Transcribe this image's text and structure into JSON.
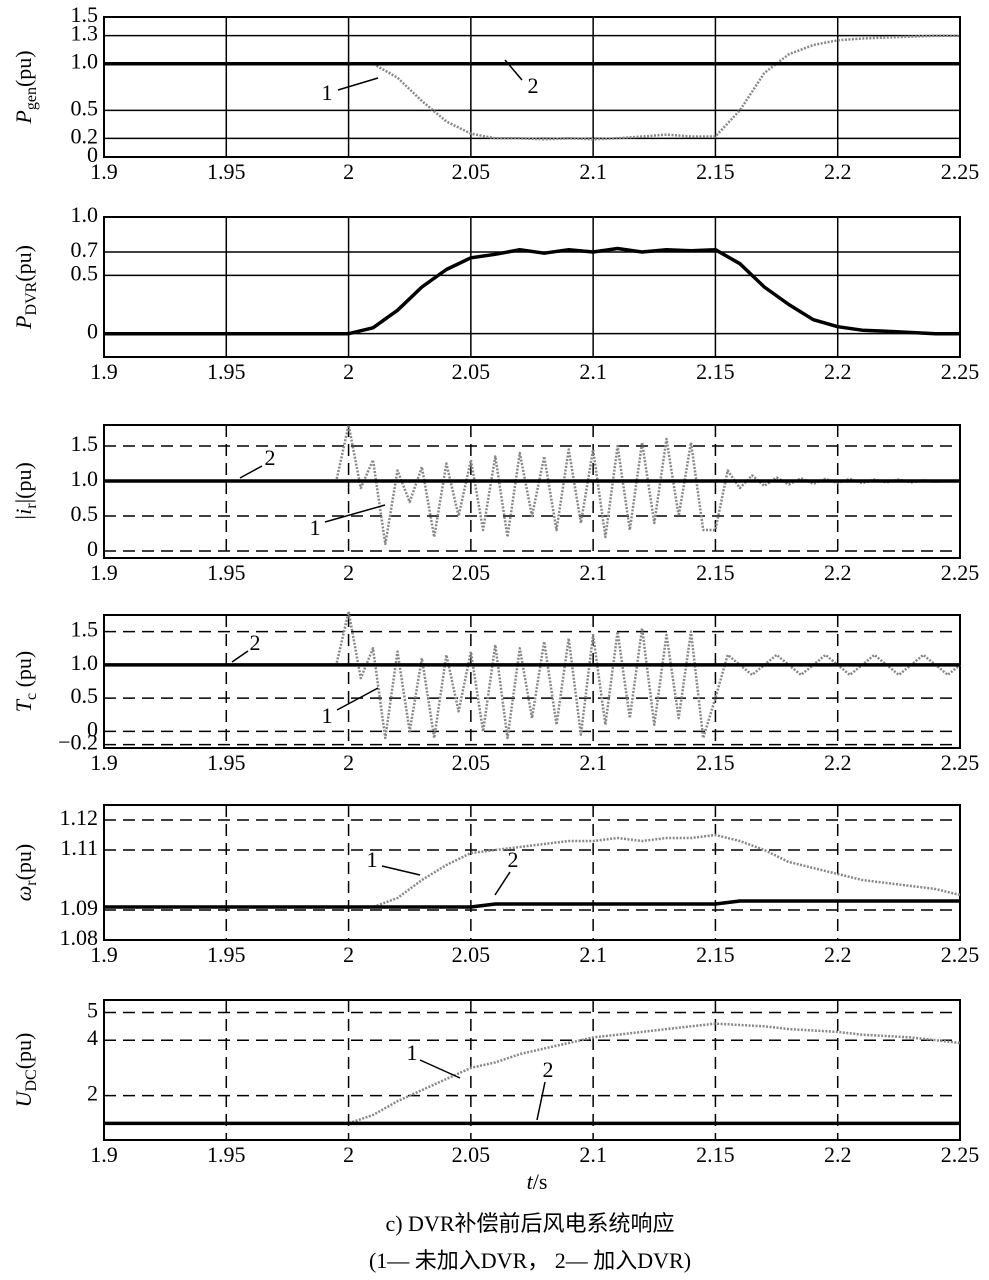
{
  "chart_data": [
    {
      "type": "line",
      "grid": "solid",
      "ylabel": {
        "main": "P",
        "sub": "gen",
        "unit": "(pu)"
      },
      "x": [
        1.9,
        1.91,
        1.92,
        1.93,
        1.94,
        1.95,
        1.96,
        1.97,
        1.98,
        1.99,
        2,
        2.01,
        2.02,
        2.03,
        2.04,
        2.05,
        2.06,
        2.07,
        2.08,
        2.09,
        2.1,
        2.11,
        2.12,
        2.13,
        2.14,
        2.15,
        2.16,
        2.17,
        2.18,
        2.19,
        2.2,
        2.21,
        2.22,
        2.23,
        2.24,
        2.25
      ],
      "xlim": [
        1.9,
        2.25
      ],
      "xticks": [
        1.9,
        1.95,
        2,
        2.05,
        2.1,
        2.15,
        2.2,
        2.25
      ],
      "ylim": [
        0,
        1.5
      ],
      "yticks": [
        0,
        0.2,
        0.5,
        {
          "value": 1,
          "label": "1.0"
        },
        1.3,
        1.5
      ],
      "series": [
        {
          "label": "1",
          "color": "#888888",
          "style": "dotted",
          "values": [
            1,
            1,
            1,
            1,
            1,
            1,
            1,
            1,
            1,
            1,
            1,
            1,
            0.85,
            0.6,
            0.38,
            0.25,
            0.2,
            0.2,
            0.19,
            0.2,
            0.19,
            0.2,
            0.22,
            0.24,
            0.22,
            0.22,
            0.5,
            0.9,
            1.1,
            1.2,
            1.25,
            1.27,
            1.28,
            1.29,
            1.3,
            1.3
          ]
        },
        {
          "label": "2",
          "color": "#000000",
          "style": "solid",
          "values": [
            1,
            1,
            1,
            1,
            1,
            1,
            1,
            1,
            1,
            1,
            1,
            1,
            1,
            1,
            1,
            1,
            1,
            1,
            1,
            1,
            1,
            1,
            1,
            1,
            1,
            1,
            1,
            1,
            1,
            1,
            1,
            1,
            1,
            1,
            1,
            1
          ]
        }
      ]
    },
    {
      "type": "line",
      "grid": "solid",
      "ylabel": {
        "main": "P",
        "sub": "DVR",
        "unit": "(pu)"
      },
      "x": [
        1.9,
        1.91,
        1.92,
        1.93,
        1.94,
        1.95,
        1.96,
        1.97,
        1.98,
        1.99,
        2,
        2.01,
        2.02,
        2.03,
        2.04,
        2.05,
        2.06,
        2.07,
        2.08,
        2.09,
        2.1,
        2.11,
        2.12,
        2.13,
        2.14,
        2.15,
        2.16,
        2.17,
        2.18,
        2.19,
        2.2,
        2.21,
        2.22,
        2.23,
        2.24,
        2.25
      ],
      "xlim": [
        1.9,
        2.25
      ],
      "xticks": [
        1.9,
        1.95,
        2,
        2.05,
        2.1,
        2.15,
        2.2,
        2.25
      ],
      "ylim": [
        -0.2,
        1.0
      ],
      "yticks": [
        0,
        0.5,
        0.7,
        {
          "value": 1,
          "label": "1.0"
        }
      ],
      "series": [
        {
          "color": "#000000",
          "style": "solid",
          "values": [
            0,
            0,
            0,
            0,
            0,
            0,
            0,
            0,
            0,
            0,
            0,
            0.05,
            0.2,
            0.4,
            0.55,
            0.65,
            0.68,
            0.72,
            0.69,
            0.72,
            0.7,
            0.73,
            0.7,
            0.72,
            0.71,
            0.72,
            0.6,
            0.4,
            0.25,
            0.12,
            0.06,
            0.03,
            0.02,
            0.01,
            0,
            0
          ]
        }
      ]
    },
    {
      "type": "line",
      "grid": "dashed",
      "ylabel": {
        "main": "|i",
        "sub": "r",
        "unit": "|(pu)"
      },
      "x": [
        1.9,
        1.905,
        1.91,
        1.915,
        1.92,
        1.925,
        1.93,
        1.935,
        1.94,
        1.945,
        1.95,
        1.955,
        1.96,
        1.965,
        1.97,
        1.975,
        1.98,
        1.985,
        1.99,
        1.995,
        2,
        2.005,
        2.01,
        2.015,
        2.02,
        2.025,
        2.03,
        2.035,
        2.04,
        2.045,
        2.05,
        2.055,
        2.06,
        2.065,
        2.07,
        2.075,
        2.08,
        2.085,
        2.09,
        2.095,
        2.1,
        2.105,
        2.11,
        2.115,
        2.12,
        2.125,
        2.13,
        2.135,
        2.14,
        2.145,
        2.15,
        2.155,
        2.16,
        2.165,
        2.17,
        2.175,
        2.18,
        2.185,
        2.19,
        2.195,
        2.2,
        2.205,
        2.21,
        2.215,
        2.22,
        2.225,
        2.23,
        2.235,
        2.24,
        2.245,
        2.25
      ],
      "xlim": [
        1.9,
        2.25
      ],
      "xticks": [
        1.9,
        1.95,
        2,
        2.05,
        2.1,
        2.15,
        2.2,
        2.25
      ],
      "ylim": [
        -0.1,
        1.8
      ],
      "yticks": [
        0,
        0.5,
        {
          "value": 1,
          "label": "1.0"
        },
        1.5
      ],
      "series": [
        {
          "label": "1",
          "color": "#888888",
          "style": "dotted",
          "values": [
            1,
            1,
            1,
            1,
            1,
            1,
            1,
            1,
            1,
            1,
            1,
            1,
            1,
            1,
            1,
            1,
            1,
            1,
            1,
            1,
            1.8,
            0.9,
            1.3,
            0.1,
            1.15,
            0.7,
            1.2,
            0.2,
            1.25,
            0.5,
            1.3,
            0.3,
            1.35,
            0.2,
            1.4,
            0.5,
            1.35,
            0.3,
            1.45,
            0.4,
            1.45,
            0.2,
            1.5,
            0.3,
            1.55,
            0.4,
            1.6,
            0.5,
            1.55,
            0.3,
            0.3,
            1.15,
            0.9,
            1.08,
            0.93,
            1.05,
            0.95,
            1.04,
            0.96,
            1.03,
            0.97,
            1.03,
            0.97,
            1.02,
            0.98,
            1.02,
            0.98,
            1.01,
            0.99,
            1,
            1
          ]
        },
        {
          "label": "2",
          "color": "#000000",
          "style": "solid",
          "values": [
            1,
            1,
            1,
            1,
            1,
            1,
            1,
            1,
            1,
            1,
            1,
            1,
            1,
            1,
            1,
            1,
            1,
            1,
            1,
            1,
            1,
            1,
            1,
            1,
            1,
            1,
            1,
            1,
            1,
            1,
            1,
            1,
            1,
            1,
            1,
            1,
            1,
            1,
            1,
            1,
            1,
            1,
            1,
            1,
            1,
            1,
            1,
            1,
            1,
            1,
            1,
            1,
            1,
            1,
            1,
            1,
            1,
            1,
            1,
            1,
            1,
            1,
            1,
            1,
            1,
            1,
            1,
            1,
            1,
            1,
            1
          ]
        }
      ]
    },
    {
      "type": "line",
      "grid": "dashed",
      "ylabel": {
        "main": "T",
        "sub": "c",
        "unit": " (pu)"
      },
      "x": [
        1.9,
        1.905,
        1.91,
        1.915,
        1.92,
        1.925,
        1.93,
        1.935,
        1.94,
        1.945,
        1.95,
        1.955,
        1.96,
        1.965,
        1.97,
        1.975,
        1.98,
        1.985,
        1.99,
        1.995,
        2,
        2.005,
        2.01,
        2.015,
        2.02,
        2.025,
        2.03,
        2.035,
        2.04,
        2.045,
        2.05,
        2.055,
        2.06,
        2.065,
        2.07,
        2.075,
        2.08,
        2.085,
        2.09,
        2.095,
        2.1,
        2.105,
        2.11,
        2.115,
        2.12,
        2.125,
        2.13,
        2.135,
        2.14,
        2.145,
        2.15,
        2.155,
        2.16,
        2.165,
        2.17,
        2.175,
        2.18,
        2.185,
        2.19,
        2.195,
        2.2,
        2.205,
        2.21,
        2.215,
        2.22,
        2.225,
        2.23,
        2.235,
        2.24,
        2.245,
        2.25
      ],
      "xlim": [
        1.9,
        2.25
      ],
      "xticks": [
        1.9,
        1.95,
        2,
        2.05,
        2.1,
        2.15,
        2.2,
        2.25
      ],
      "ylim": [
        -0.25,
        1.75
      ],
      "yticks": [
        {
          "value": -0.2,
          "label": "−0.2"
        },
        0,
        0.5,
        {
          "value": 1,
          "label": "1.0"
        },
        1.5
      ],
      "series": [
        {
          "label": "1",
          "color": "#888888",
          "style": "dotted",
          "values": [
            1,
            1,
            1,
            1,
            1,
            1,
            1,
            1,
            1,
            1,
            1,
            1,
            1,
            1,
            1,
            1,
            1,
            1,
            1,
            1,
            1.8,
            0.8,
            1.25,
            -0.1,
            1.2,
            0,
            1.1,
            -0.1,
            1.15,
            0.3,
            1.2,
            0,
            1.3,
            -0.1,
            1.25,
            0.2,
            1.35,
            0.1,
            1.4,
            -0.05,
            1.45,
            0.1,
            1.5,
            0.2,
            1.55,
            0.1,
            1.45,
            0.2,
            1.5,
            -0.1,
            0.5,
            1.15,
            1,
            0.85,
            1,
            1.15,
            1,
            0.85,
            1,
            1.15,
            1,
            0.85,
            1,
            1.15,
            1,
            0.85,
            1,
            1.15,
            1,
            0.85,
            1
          ]
        },
        {
          "label": "2",
          "color": "#000000",
          "style": "solid",
          "values": [
            1,
            1,
            1,
            1,
            1,
            1,
            1,
            1,
            1,
            1,
            1,
            1,
            1,
            1,
            1,
            1,
            1,
            1,
            1,
            1,
            1,
            1,
            1,
            1,
            1,
            1,
            1,
            1,
            1,
            1,
            1,
            1,
            1,
            1,
            1,
            1,
            1,
            1,
            1,
            1,
            1,
            1,
            1,
            1,
            1,
            1,
            1,
            1,
            1,
            1,
            1,
            1,
            1,
            1,
            1,
            1,
            1,
            1,
            1,
            1,
            1,
            1,
            1,
            1,
            1,
            1,
            1,
            1,
            1,
            1,
            1
          ]
        }
      ]
    },
    {
      "type": "line",
      "grid": "dashed",
      "ylabel": {
        "main": "ω",
        "sub": "r",
        "unit": "(pu)"
      },
      "x": [
        1.9,
        1.91,
        1.92,
        1.93,
        1.94,
        1.95,
        1.96,
        1.97,
        1.98,
        1.99,
        2,
        2.01,
        2.02,
        2.03,
        2.04,
        2.05,
        2.06,
        2.07,
        2.08,
        2.09,
        2.1,
        2.11,
        2.12,
        2.13,
        2.14,
        2.15,
        2.16,
        2.17,
        2.18,
        2.19,
        2.2,
        2.21,
        2.22,
        2.23,
        2.24,
        2.25
      ],
      "xlim": [
        1.9,
        2.25
      ],
      "xticks": [
        1.9,
        1.95,
        2,
        2.05,
        2.1,
        2.15,
        2.2,
        2.25
      ],
      "ylim": [
        1.08,
        1.125
      ],
      "yticks": [
        1.08,
        1.09,
        1.11,
        1.12
      ],
      "series": [
        {
          "label": "1",
          "color": "#888888",
          "style": "dotted",
          "values": [
            1.091,
            1.091,
            1.091,
            1.091,
            1.091,
            1.091,
            1.091,
            1.091,
            1.091,
            1.091,
            1.091,
            1.091,
            1.094,
            1.1,
            1.105,
            1.109,
            1.11,
            1.111,
            1.112,
            1.113,
            1.113,
            1.114,
            1.113,
            1.114,
            1.114,
            1.115,
            1.113,
            1.11,
            1.106,
            1.104,
            1.102,
            1.1,
            1.099,
            1.098,
            1.097,
            1.095
          ]
        },
        {
          "label": "2",
          "color": "#000000",
          "style": "solid",
          "values": [
            1.091,
            1.091,
            1.091,
            1.091,
            1.091,
            1.091,
            1.091,
            1.091,
            1.091,
            1.091,
            1.091,
            1.091,
            1.091,
            1.091,
            1.091,
            1.091,
            1.092,
            1.092,
            1.092,
            1.092,
            1.092,
            1.092,
            1.092,
            1.092,
            1.092,
            1.092,
            1.093,
            1.093,
            1.093,
            1.093,
            1.093,
            1.093,
            1.093,
            1.093,
            1.093,
            1.093
          ]
        }
      ]
    },
    {
      "type": "line",
      "grid": "dashed",
      "ylabel": {
        "main": "U",
        "sub": "DC",
        "unit": "(pu)"
      },
      "xlabel": {
        "main": "t",
        "unit": "/s"
      },
      "x": [
        1.9,
        1.91,
        1.92,
        1.93,
        1.94,
        1.95,
        1.96,
        1.97,
        1.98,
        1.99,
        2,
        2.01,
        2.02,
        2.03,
        2.04,
        2.05,
        2.06,
        2.07,
        2.08,
        2.09,
        2.1,
        2.11,
        2.12,
        2.13,
        2.14,
        2.15,
        2.16,
        2.17,
        2.18,
        2.19,
        2.2,
        2.21,
        2.22,
        2.23,
        2.24,
        2.25
      ],
      "xlim": [
        1.9,
        2.25
      ],
      "xticks": [
        1.9,
        1.95,
        2,
        2.05,
        2.1,
        2.15,
        2.2,
        2.25
      ],
      "ylim": [
        0.4,
        5.45
      ],
      "yticks": [
        2,
        4,
        5
      ],
      "series": [
        {
          "label": "1",
          "color": "#888888",
          "style": "dotted",
          "values": [
            1,
            1,
            1,
            1,
            1,
            1,
            1,
            1,
            1,
            1,
            1,
            1.3,
            1.8,
            2.2,
            2.6,
            3,
            3.2,
            3.5,
            3.7,
            3.9,
            4.1,
            4.2,
            4.3,
            4.4,
            4.5,
            4.6,
            4.55,
            4.5,
            4.4,
            4.35,
            4.3,
            4.2,
            4.15,
            4.1,
            4,
            3.9
          ]
        },
        {
          "label": "2",
          "color": "#000000",
          "style": "solid",
          "values": [
            1,
            1,
            1,
            1,
            1,
            1,
            1,
            1,
            1,
            1,
            1,
            1,
            1,
            1,
            1,
            1,
            1,
            1,
            1,
            1,
            1,
            1,
            1,
            1,
            1,
            1,
            1,
            1,
            1,
            1,
            1,
            1,
            1,
            1,
            1,
            1
          ]
        }
      ]
    }
  ],
  "caption": [
    "c) DVR补偿前后风电系统响应",
    "(1— 未加入DVR， 2— 加入DVR)"
  ]
}
